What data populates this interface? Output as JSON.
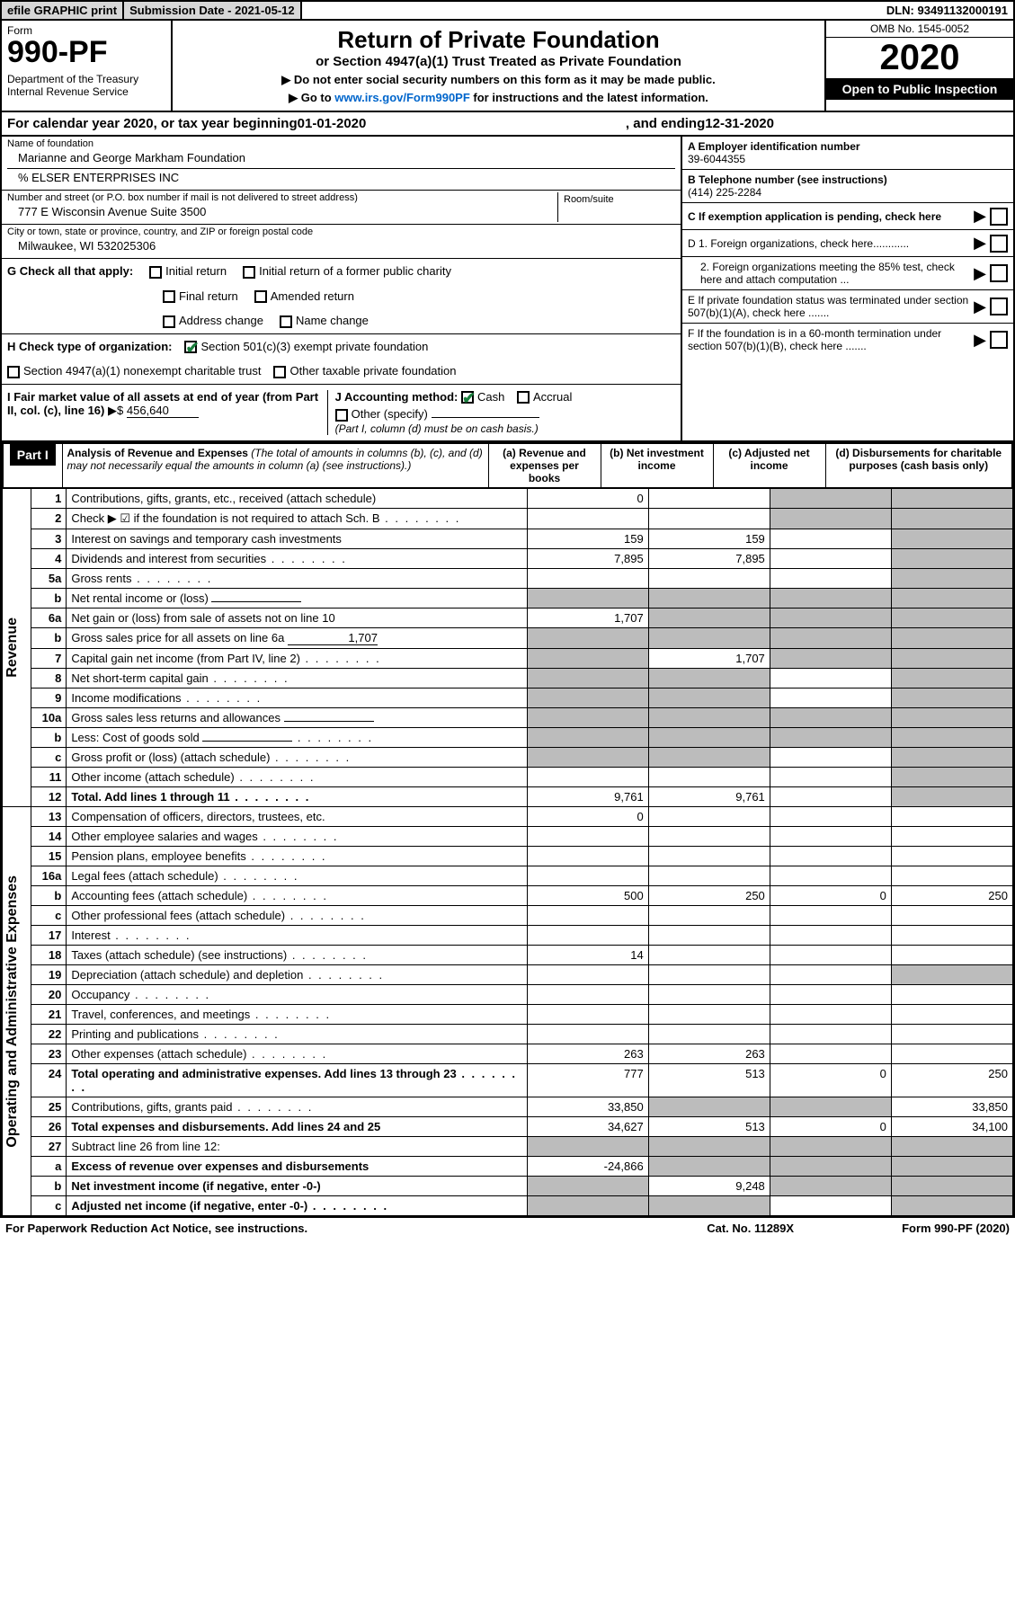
{
  "topbar": {
    "efile": "efile GRAPHIC print",
    "subdate_label": "Submission Date - ",
    "subdate": "2021-05-12",
    "dln_label": "DLN: ",
    "dln": "93491132000191"
  },
  "header": {
    "form_label": "Form",
    "form_no": "990-PF",
    "dept": "Department of the Treasury",
    "irs": "Internal Revenue Service",
    "title": "Return of Private Foundation",
    "subtitle": "or Section 4947(a)(1) Trust Treated as Private Foundation",
    "note1": "▶ Do not enter social security numbers on this form as it may be made public.",
    "note2_pre": "▶ Go to ",
    "note2_link": "www.irs.gov/Form990PF",
    "note2_post": " for instructions and the latest information.",
    "omb": "OMB No. 1545-0052",
    "year": "2020",
    "open": "Open to Public Inspection"
  },
  "calendar": {
    "pre": "For calendar year 2020, or tax year beginning ",
    "begin": "01-01-2020",
    "mid": " , and ending ",
    "end": "12-31-2020"
  },
  "foundation": {
    "name_label": "Name of foundation",
    "name": "Marianne and George Markham Foundation",
    "co": "% ELSER ENTERPRISES INC",
    "addr_label": "Number and street (or P.O. box number if mail is not delivered to street address)",
    "addr": "777 E Wisconsin Avenue Suite 3500",
    "room_label": "Room/suite",
    "city_label": "City or town, state or province, country, and ZIP or foreign postal code",
    "city": "Milwaukee, WI  532025306"
  },
  "side": {
    "A_label": "A Employer identification number",
    "A": "39-6044355",
    "B_label": "B Telephone number (see instructions)",
    "B": "(414) 225-2284",
    "C": "C If exemption application is pending, check here",
    "D1": "D 1. Foreign organizations, check here............",
    "D2": "2. Foreign organizations meeting the 85% test, check here and attach computation ...",
    "E": "E  If private foundation status was terminated under section 507(b)(1)(A), check here .......",
    "F": "F  If the foundation is in a 60-month termination under section 507(b)(1)(B), check here .......",
    "ptr": "▶"
  },
  "G": {
    "label": "G Check all that apply:",
    "o1": "Initial return",
    "o2": "Initial return of a former public charity",
    "o3": "Final return",
    "o4": "Amended return",
    "o5": "Address change",
    "o6": "Name change"
  },
  "H": {
    "label": "H Check type of organization:",
    "o1": "Section 501(c)(3) exempt private foundation",
    "o2": "Section 4947(a)(1) nonexempt charitable trust",
    "o3": "Other taxable private foundation"
  },
  "I": {
    "label": "I Fair market value of all assets at end of year (from Part II, col. (c), line 16)",
    "ptr": "▶$",
    "val": "456,640"
  },
  "J": {
    "label": "J Accounting method:",
    "o1": "Cash",
    "o2": "Accrual",
    "o3": "Other (specify)",
    "note": "(Part I, column (d) must be on cash basis.)"
  },
  "part1": {
    "label": "Part I",
    "title": "Analysis of Revenue and Expenses",
    "title_note": " (The total of amounts in columns (b), (c), and (d) may not necessarily equal the amounts in column (a) (see instructions).)",
    "col_a": "(a)   Revenue and expenses per books",
    "col_b": "(b)  Net investment income",
    "col_c": "(c)  Adjusted net income",
    "col_d": "(d)  Disbursements for charitable purposes (cash basis only)"
  },
  "revenue_label": "Revenue",
  "expense_label": "Operating and Administrative Expenses",
  "rows": [
    {
      "n": "1",
      "d": "Contributions, gifts, grants, etc., received (attach schedule)",
      "a": "0",
      "b": "",
      "c": "s",
      "ds": "s"
    },
    {
      "n": "2",
      "d": "Check ▶ ☑ if the foundation is not required to attach Sch. B",
      "a": "",
      "b": "",
      "c": "s",
      "ds": "s",
      "dots": true
    },
    {
      "n": "3",
      "d": "Interest on savings and temporary cash investments",
      "a": "159",
      "b": "159",
      "c": "",
      "ds": "s"
    },
    {
      "n": "4",
      "d": "Dividends and interest from securities",
      "a": "7,895",
      "b": "7,895",
      "c": "",
      "ds": "s",
      "dots": true
    },
    {
      "n": "5a",
      "d": "Gross rents",
      "a": "",
      "b": "",
      "c": "",
      "ds": "s",
      "dots": true
    },
    {
      "n": "b",
      "d": "Net rental income or (loss)",
      "a": "s",
      "b": "s",
      "c": "s",
      "ds": "s",
      "inline": true
    },
    {
      "n": "6a",
      "d": "Net gain or (loss) from sale of assets not on line 10",
      "a": "1,707",
      "b": "s",
      "c": "s",
      "ds": "s"
    },
    {
      "n": "b",
      "d": "Gross sales price for all assets on line 6a",
      "a": "s",
      "b": "s",
      "c": "s",
      "ds": "s",
      "inline": true,
      "iv": "1,707"
    },
    {
      "n": "7",
      "d": "Capital gain net income (from Part IV, line 2)",
      "a": "s",
      "b": "1,707",
      "c": "s",
      "ds": "s",
      "dots": true
    },
    {
      "n": "8",
      "d": "Net short-term capital gain",
      "a": "s",
      "b": "s",
      "c": "",
      "ds": "s",
      "dots": true
    },
    {
      "n": "9",
      "d": "Income modifications",
      "a": "s",
      "b": "s",
      "c": "",
      "ds": "s",
      "dots": true
    },
    {
      "n": "10a",
      "d": "Gross sales less returns and allowances",
      "a": "s",
      "b": "s",
      "c": "s",
      "ds": "s",
      "inline": true
    },
    {
      "n": "b",
      "d": "Less: Cost of goods sold",
      "a": "s",
      "b": "s",
      "c": "s",
      "ds": "s",
      "inline": true,
      "dots": true
    },
    {
      "n": "c",
      "d": "Gross profit or (loss) (attach schedule)",
      "a": "s",
      "b": "s",
      "c": "",
      "ds": "s",
      "dots": true
    },
    {
      "n": "11",
      "d": "Other income (attach schedule)",
      "a": "",
      "b": "",
      "c": "",
      "ds": "s",
      "dots": true
    },
    {
      "n": "12",
      "d": "Total. Add lines 1 through 11",
      "a": "9,761",
      "b": "9,761",
      "c": "",
      "ds": "s",
      "bold": true,
      "dots": true
    },
    {
      "n": "13",
      "d": "Compensation of officers, directors, trustees, etc.",
      "a": "0",
      "b": "",
      "c": "",
      "ds": ""
    },
    {
      "n": "14",
      "d": "Other employee salaries and wages",
      "a": "",
      "b": "",
      "c": "",
      "ds": "",
      "dots": true
    },
    {
      "n": "15",
      "d": "Pension plans, employee benefits",
      "a": "",
      "b": "",
      "c": "",
      "ds": "",
      "dots": true
    },
    {
      "n": "16a",
      "d": "Legal fees (attach schedule)",
      "a": "",
      "b": "",
      "c": "",
      "ds": "",
      "dots": true
    },
    {
      "n": "b",
      "d": "Accounting fees (attach schedule)",
      "a": "500",
      "b": "250",
      "c": "0",
      "ds": "250",
      "dots": true
    },
    {
      "n": "c",
      "d": "Other professional fees (attach schedule)",
      "a": "",
      "b": "",
      "c": "",
      "ds": "",
      "dots": true
    },
    {
      "n": "17",
      "d": "Interest",
      "a": "",
      "b": "",
      "c": "",
      "ds": "",
      "dots": true
    },
    {
      "n": "18",
      "d": "Taxes (attach schedule) (see instructions)",
      "a": "14",
      "b": "",
      "c": "",
      "ds": "",
      "dots": true
    },
    {
      "n": "19",
      "d": "Depreciation (attach schedule) and depletion",
      "a": "",
      "b": "",
      "c": "",
      "ds": "s",
      "dots": true
    },
    {
      "n": "20",
      "d": "Occupancy",
      "a": "",
      "b": "",
      "c": "",
      "ds": "",
      "dots": true
    },
    {
      "n": "21",
      "d": "Travel, conferences, and meetings",
      "a": "",
      "b": "",
      "c": "",
      "ds": "",
      "dots": true
    },
    {
      "n": "22",
      "d": "Printing and publications",
      "a": "",
      "b": "",
      "c": "",
      "ds": "",
      "dots": true
    },
    {
      "n": "23",
      "d": "Other expenses (attach schedule)",
      "a": "263",
      "b": "263",
      "c": "",
      "ds": "",
      "dots": true
    },
    {
      "n": "24",
      "d": "Total operating and administrative expenses. Add lines 13 through 23",
      "a": "777",
      "b": "513",
      "c": "0",
      "ds": "250",
      "bold": true,
      "dots": true
    },
    {
      "n": "25",
      "d": "Contributions, gifts, grants paid",
      "a": "33,850",
      "b": "s",
      "c": "s",
      "ds": "33,850",
      "dots": true
    },
    {
      "n": "26",
      "d": "Total expenses and disbursements. Add lines 24 and 25",
      "a": "34,627",
      "b": "513",
      "c": "0",
      "ds": "34,100",
      "bold": true
    },
    {
      "n": "27",
      "d": "Subtract line 26 from line 12:",
      "a": "s",
      "b": "s",
      "c": "s",
      "ds": "s"
    },
    {
      "n": "a",
      "d": "Excess of revenue over expenses and disbursements",
      "a": "-24,866",
      "b": "s",
      "c": "s",
      "ds": "s",
      "bold": true
    },
    {
      "n": "b",
      "d": "Net investment income (if negative, enter -0-)",
      "a": "s",
      "b": "9,248",
      "c": "s",
      "ds": "s",
      "bold": true
    },
    {
      "n": "c",
      "d": "Adjusted net income (if negative, enter -0-)",
      "a": "s",
      "b": "s",
      "c": "",
      "ds": "s",
      "bold": true,
      "dots": true
    }
  ],
  "footer": {
    "left": "For Paperwork Reduction Act Notice, see instructions.",
    "mid": "Cat. No. 11289X",
    "right": "Form 990-PF (2020)"
  }
}
